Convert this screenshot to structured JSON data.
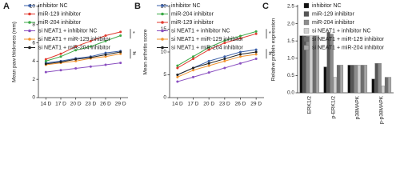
{
  "chart_data": [
    {
      "type": "line",
      "panel": "A",
      "ylabel": "Mean paw thickness (mm)",
      "categories": [
        "14 D",
        "17 D",
        "20 D",
        "23 D",
        "26 D",
        "29 D"
      ],
      "series": [
        {
          "name": "inhibitor NC",
          "color": "#3a5fa8",
          "values": [
            3.8,
            4.0,
            4.3,
            4.5,
            4.9,
            5.1
          ]
        },
        {
          "name": "miR-129 inhibitor",
          "color": "#e03a2f",
          "values": [
            4.2,
            4.8,
            5.6,
            6.2,
            6.8,
            7.2
          ]
        },
        {
          "name": "miR-204 inhibitor",
          "color": "#3aa845",
          "values": [
            4.0,
            4.5,
            5.2,
            5.6,
            6.2,
            6.8
          ]
        },
        {
          "name": "si NEAT1 + inhibitor NC",
          "color": "#8a4fc0",
          "values": [
            2.8,
            3.0,
            3.2,
            3.4,
            3.6,
            3.8
          ]
        },
        {
          "name": "si NEAT1 + miR-129 inhibitor",
          "color": "#f0922e",
          "values": [
            3.6,
            3.8,
            4.0,
            4.3,
            4.5,
            4.8
          ]
        },
        {
          "name": "si NEAT1 + miR-204 inhibitor",
          "color": "#222222",
          "values": [
            3.7,
            3.9,
            4.2,
            4.4,
            4.7,
            5.0
          ]
        }
      ],
      "ylim": [
        0,
        10
      ],
      "yticks": [
        0,
        2,
        4,
        6,
        8,
        10
      ],
      "annotations": [
        "*",
        "#"
      ]
    },
    {
      "type": "line",
      "panel": "B",
      "ylabel": "Mean arthritis score",
      "categories": [
        "14 D",
        "17 D",
        "20 D",
        "23 D",
        "26 D",
        "29 D"
      ],
      "series": [
        {
          "name": "inhibitor NC",
          "color": "#3a5fa8",
          "values": [
            5,
            6.5,
            8,
            9,
            10,
            10.5
          ]
        },
        {
          "name": "miR-204 inhibitor",
          "color": "#3aa845",
          "values": [
            7,
            9,
            11,
            12.5,
            13.5,
            14.5
          ]
        },
        {
          "name": "miR-129 inhibitor",
          "color": "#e03a2f",
          "values": [
            6.5,
            8.5,
            10.5,
            12,
            13,
            14
          ]
        },
        {
          "name": "si NEAT1 + inhibitor NC",
          "color": "#8a4fc0",
          "values": [
            3.5,
            4.5,
            5.5,
            6.5,
            7.5,
            8.5
          ]
        },
        {
          "name": "si NEAT1 + miR-129 inhibitor",
          "color": "#f0922e",
          "values": [
            4.5,
            6,
            7,
            8,
            9,
            9.5
          ]
        },
        {
          "name": "si NEAT1 + miR-204 inhibitor",
          "color": "#222222",
          "values": [
            5,
            6.5,
            7.5,
            8.5,
            9.5,
            10
          ]
        }
      ],
      "ylim": [
        0,
        20
      ],
      "yticks": [
        0,
        5,
        10,
        15,
        20
      ],
      "annotations": [
        "*",
        "#"
      ]
    },
    {
      "type": "bar",
      "panel": "C",
      "ylabel": "Relative protein expression",
      "categories": [
        "ERK1/2",
        "p-ERK1/2",
        "p38MAPK",
        "p-p38MAPK"
      ],
      "series": [
        {
          "name": "inhibitor NC",
          "color": "#111111",
          "values": [
            1.65,
            0.75,
            0.8,
            0.4
          ]
        },
        {
          "name": "miR-129 inhibitor",
          "color": "#555555",
          "values": [
            1.65,
            1.75,
            0.8,
            0.85
          ]
        },
        {
          "name": "miR-204 inhibitor",
          "color": "#8c8c8c",
          "values": [
            1.65,
            1.7,
            0.8,
            0.85
          ]
        },
        {
          "name": "si NEAT1 + inhibitor NC",
          "color": "#d0d0d0",
          "values": [
            1.65,
            0.45,
            0.8,
            0.2
          ]
        },
        {
          "name": "si NEAT1 + miR-129 inhibitor",
          "color": "#6e6e6e",
          "values": [
            1.65,
            0.8,
            0.8,
            0.45
          ]
        },
        {
          "name": "si NEAT1 + miR-204 inhibitor",
          "color": "#a8a8a8",
          "values": [
            1.65,
            0.8,
            0.8,
            0.45
          ]
        }
      ],
      "ylim": [
        0,
        2.5
      ],
      "yticks": [
        {
          "value": 0,
          "label": "0.0"
        },
        0.5,
        {
          "value": 1,
          "label": "1.0"
        },
        1.5,
        {
          "value": 2,
          "label": "2.0"
        },
        2.5
      ]
    }
  ]
}
